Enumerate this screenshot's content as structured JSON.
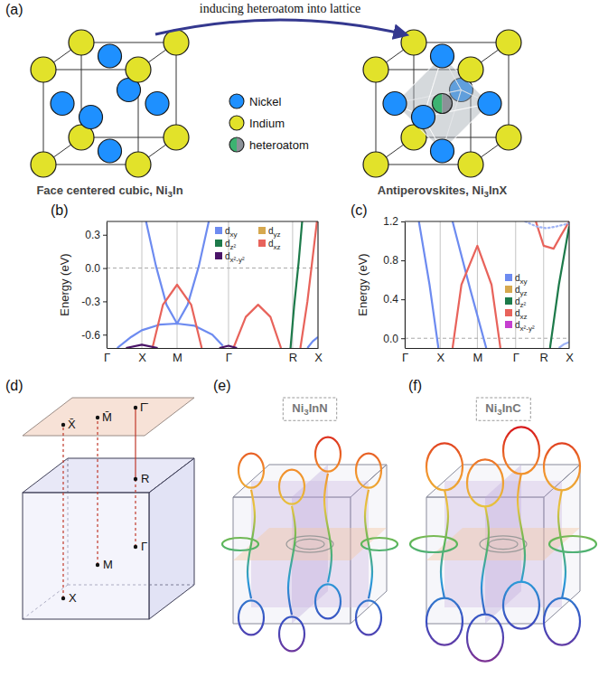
{
  "panel_labels": [
    "(a)",
    "(b)",
    "(c)",
    "(d)",
    "(e)",
    "(f)"
  ],
  "panel_a": {
    "arrow_label": "inducing heteroatom into lattice",
    "atoms": [
      {
        "name": "Nickel",
        "color": "#1e90ff"
      },
      {
        "name": "Indium",
        "color": "#e2e22a"
      },
      {
        "name": "heteroatom",
        "color": "#3cb371"
      }
    ],
    "captions": [
      "Face centered cubic, Ni3In",
      "Antiperovskites, Ni3InX"
    ]
  },
  "chart_data": [
    {
      "type": "line",
      "y_label": "Energy (eV)",
      "xlim": [
        0,
        6
      ],
      "xticks": [
        {
          "value": 0,
          "label": "Γ"
        },
        {
          "value": 1,
          "label": "X"
        },
        {
          "value": 2,
          "label": "M"
        },
        {
          "value": 3.46,
          "label": "Γ"
        },
        {
          "value": 5.28,
          "label": "R"
        },
        {
          "value": 6,
          "label": "X"
        }
      ],
      "ylim": [
        -0.72,
        0.42
      ],
      "yticks": [
        -0.6,
        -0.3,
        {
          "value": 0,
          "label": "0.0"
        },
        0.3
      ],
      "grid": "x",
      "hline": 0,
      "legend": "top-right",
      "legend_entries": [
        {
          "name": "dxy",
          "color": "#6d8bf0"
        },
        {
          "name": "dyz",
          "color": "#d6a84e"
        },
        {
          "name": "dz²",
          "color": "#1d7a4a"
        },
        {
          "name": "dxz",
          "color": "#e8635b"
        },
        {
          "name": "dx²-y²",
          "color": "#4a1468"
        }
      ],
      "series": [
        {
          "color": "#6d8bf0",
          "x": [
            0.3,
            0.7,
            1.0,
            1.5,
            2.0,
            2.5,
            3.0,
            3.3
          ],
          "values": [
            -0.72,
            -0.62,
            -0.56,
            -0.51,
            -0.5,
            -0.52,
            -0.6,
            -0.7
          ]
        },
        {
          "color": "#6d8bf0",
          "x": [
            1.12,
            1.4,
            1.7,
            2.0
          ],
          "values": [
            0.42,
            0.02,
            -0.33,
            -0.5
          ]
        },
        {
          "color": "#6d8bf0",
          "x": [
            2.0,
            2.3,
            2.62,
            2.9
          ],
          "values": [
            -0.5,
            -0.33,
            0.02,
            0.42
          ]
        },
        {
          "color": "#e8635b",
          "x": [
            1.3,
            1.6,
            2.0,
            2.4,
            2.7
          ],
          "values": [
            -0.72,
            -0.33,
            -0.15,
            -0.33,
            -0.72
          ]
        },
        {
          "color": "#e8635b",
          "x": [
            3.6,
            3.95,
            4.3,
            4.65,
            4.95
          ],
          "values": [
            -0.72,
            -0.44,
            -0.33,
            -0.44,
            -0.72
          ]
        },
        {
          "color": "#4a1468",
          "x": [
            0.55,
            1.0,
            1.45
          ],
          "values": [
            -0.72,
            -0.69,
            -0.72
          ]
        },
        {
          "color": "#4a1468",
          "x": [
            3.2,
            3.46,
            3.7
          ],
          "values": [
            -0.72,
            -0.7,
            -0.72
          ]
        },
        {
          "color": "#1d7a4a",
          "x": [
            5.22,
            5.32,
            5.45,
            5.55
          ],
          "values": [
            -0.72,
            -0.35,
            0.05,
            0.42
          ]
        },
        {
          "color": "#e8635b",
          "x": [
            5.5,
            5.7,
            5.85,
            5.97
          ],
          "values": [
            -0.72,
            -0.3,
            0.1,
            0.42
          ]
        },
        {
          "color": "#6d8bf0",
          "x": [
            5.7,
            5.85,
            6.0
          ],
          "values": [
            -0.72,
            -0.66,
            -0.62
          ]
        }
      ]
    },
    {
      "type": "line",
      "y_label": "Energy (eV)",
      "xlim": [
        0,
        4.64
      ],
      "xticks": [
        {
          "value": 0,
          "label": "Γ"
        },
        {
          "value": 1,
          "label": "X"
        },
        {
          "value": 2.05,
          "label": "M"
        },
        {
          "value": 3.13,
          "label": "Γ"
        },
        {
          "value": 3.92,
          "label": "R"
        },
        {
          "value": 4.64,
          "label": "X"
        }
      ],
      "ylim": [
        -0.1,
        1.2
      ],
      "yticks": [
        {
          "value": 0,
          "label": "0.0"
        },
        0.4,
        0.8,
        1.2
      ],
      "grid": "x",
      "hline": 0,
      "legend": "right",
      "legend_entries": [
        {
          "name": "dxy",
          "color": "#6d8bf0"
        },
        {
          "name": "dyz",
          "color": "#d6a84e"
        },
        {
          "name": "dz²",
          "color": "#1d7a4a"
        },
        {
          "name": "dxz",
          "color": "#e8635b"
        },
        {
          "name": "dx²-y²",
          "color": "#c63fd0"
        }
      ],
      "series": [
        {
          "color": "#6d8bf0",
          "x": [
            0.4,
            0.7,
            0.95
          ],
          "values": [
            1.2,
            0.55,
            -0.1
          ]
        },
        {
          "color": "#6d8bf0",
          "x": [
            1.35,
            1.85,
            2.3
          ],
          "values": [
            1.2,
            0.5,
            -0.1
          ]
        },
        {
          "color": "#e8635b",
          "x": [
            1.35,
            1.6,
            2.05,
            2.45,
            2.7
          ],
          "values": [
            -0.1,
            0.55,
            0.95,
            0.55,
            -0.1
          ]
        },
        {
          "color": "#e8635b",
          "x": [
            3.7,
            3.92,
            4.2,
            4.4,
            4.64
          ],
          "values": [
            1.2,
            0.95,
            0.92,
            1.05,
            1.2
          ]
        },
        {
          "color": "#9fb3f5",
          "line_style": "dotted",
          "x": [
            3.4,
            3.7,
            4.0,
            4.3,
            4.64
          ],
          "values": [
            1.2,
            1.15,
            1.13,
            1.15,
            1.18
          ]
        },
        {
          "color": "#1d7a4a",
          "x": [
            4.1,
            4.35,
            4.64
          ],
          "values": [
            -0.1,
            0.55,
            1.15
          ]
        },
        {
          "color": "#9fb3f5",
          "x": [
            4.35,
            4.5,
            4.64
          ],
          "values": [
            -0.1,
            -0.06,
            -0.04
          ]
        }
      ]
    }
  ],
  "panel_d": {
    "surface_points": [
      "X̄",
      "M̄",
      "Γ̄"
    ],
    "bulk_points": [
      "R",
      "Γ",
      "M",
      "X"
    ]
  },
  "panel_e": {
    "label": "Ni3InN"
  },
  "panel_f": {
    "label": "Ni3InC"
  }
}
